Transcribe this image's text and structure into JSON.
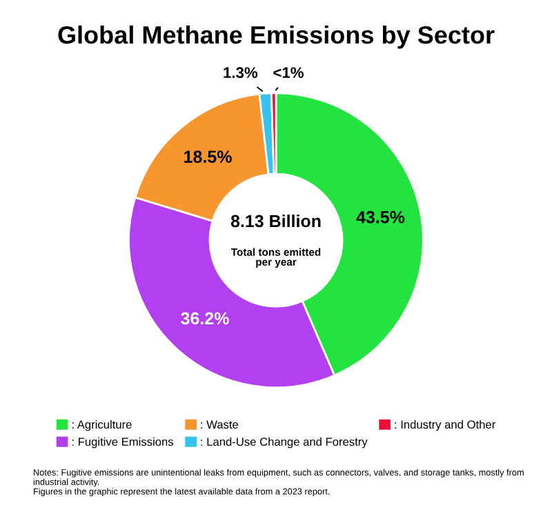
{
  "chart_data": {
    "type": "donut",
    "title": "Global Methane Emissions by Sector",
    "categories": [
      ": Agriculture",
      ": Fugitive Emissions",
      ": Waste",
      ": Land-Use Change and Forestry",
      ": Industry and Other"
    ],
    "values": [
      43.5,
      36.2,
      18.5,
      1.3,
      0.5
    ],
    "colors": [
      "#22e33f",
      "#b23ff0",
      "#f7962e",
      "#35c3f0",
      "#e8103a"
    ],
    "value_labels": [
      "43.5%",
      "36.2%",
      "18.5%",
      "1.3%",
      "<1%"
    ],
    "legend": "bottom",
    "annotations": [
      "8.13 Billion",
      "Total tons emitted\nper year",
      "Notes: Fugitive emissions are unintentional leaks from equipment, such as connectors, valves, and storage tanks, mostly from industrial activity.\nFigures in the graphic represent the latest available data from a 2023 report."
    ]
  }
}
